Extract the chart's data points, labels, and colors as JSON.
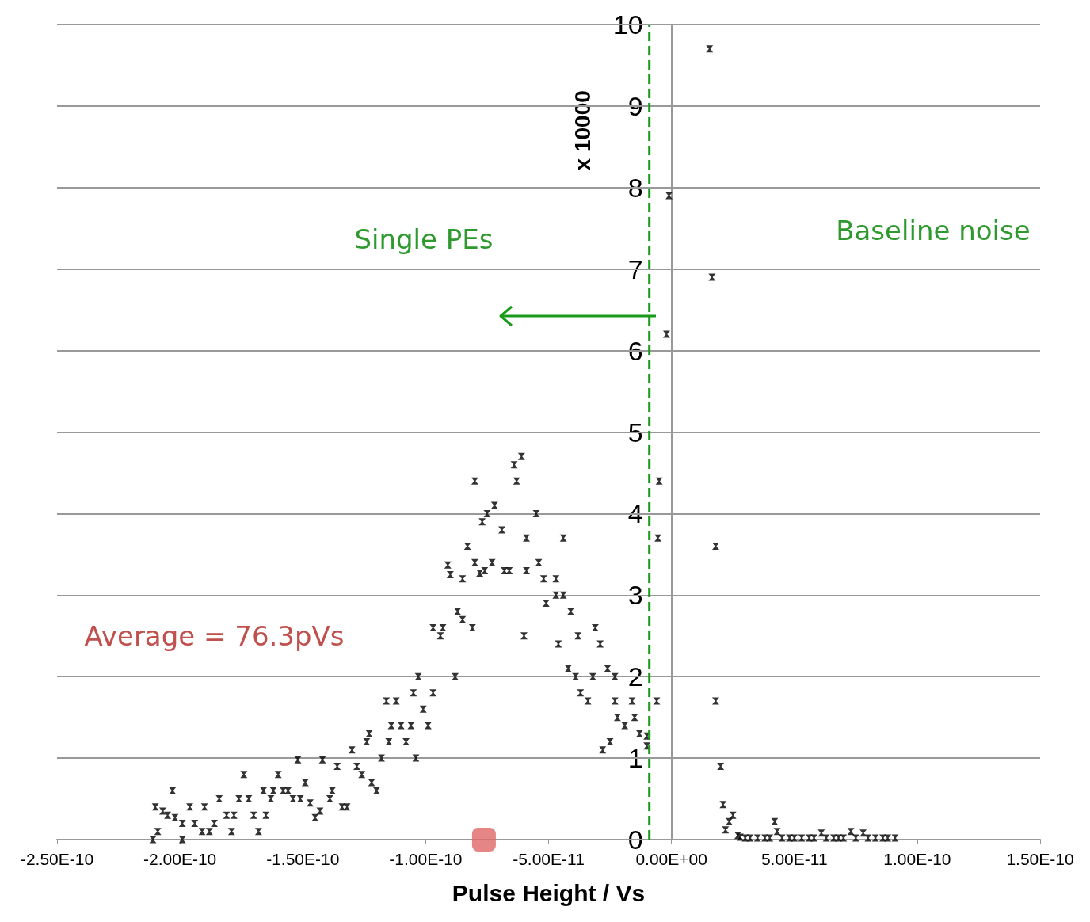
{
  "chart_data": {
    "type": "scatter",
    "xlabel": "Pulse Height / Vs",
    "ylabel": "x 10000",
    "xlim": [
      -2.5e-10,
      1.5e-10
    ],
    "xticks": [
      {
        "value": -2.5e-10,
        "label": "-2.50E-10"
      },
      {
        "value": -2e-10,
        "label": "-2.00E-10"
      },
      {
        "value": -1.5e-10,
        "label": "-1.50E-10"
      },
      {
        "value": -1e-10,
        "label": "-1.00E-10"
      },
      {
        "value": -5e-11,
        "label": "-5.00E-11"
      },
      {
        "value": 0,
        "label": "0.00E+00"
      },
      {
        "value": 5e-11,
        "label": "5.00E-11"
      },
      {
        "value": 1e-10,
        "label": "1.00E-10"
      },
      {
        "value": 1.5e-10,
        "label": "1.50E-10"
      }
    ],
    "ylim": [
      0,
      10
    ],
    "yticks": [
      0,
      1,
      2,
      3,
      4,
      5,
      6,
      7,
      8,
      9,
      10
    ],
    "grid": "y",
    "marker": "cross",
    "ref_lines": [
      {
        "axis": "x",
        "value": -9e-12,
        "color": "#1a9a1a",
        "line_style": "dashed"
      }
    ],
    "annotations": [
      "Single PEs",
      "Baseline noise",
      "Average = 76.3pVs"
    ],
    "series": [
      {
        "color": "#000000",
        "x": [
          -2.11e-10,
          -2.09e-10,
          -2.1e-10,
          -2.07e-10,
          -2.05e-10,
          -2.03e-10,
          -2.02e-10,
          -1.99e-10,
          -1.99e-10,
          -1.96e-10,
          -1.94e-10,
          -1.91e-10,
          -1.9e-10,
          -1.88e-10,
          -1.86e-10,
          -1.84e-10,
          -1.81e-10,
          -1.79e-10,
          -1.78e-10,
          -1.76e-10,
          -1.74e-10,
          -1.72e-10,
          -1.7e-10,
          -1.68e-10,
          -1.66e-10,
          -1.65e-10,
          -1.63e-10,
          -1.62e-10,
          -1.6e-10,
          -1.58e-10,
          -1.56e-10,
          -1.54e-10,
          -1.52e-10,
          -1.51e-10,
          -1.49e-10,
          -1.47e-10,
          -1.45e-10,
          -1.43e-10,
          -1.42e-10,
          -1.39e-10,
          -1.38e-10,
          -1.36e-10,
          -1.34e-10,
          -1.32e-10,
          -1.3e-10,
          -1.28e-10,
          -1.26e-10,
          -1.24e-10,
          -1.23e-10,
          -1.22e-10,
          -1.2e-10,
          -1.18e-10,
          -1.16e-10,
          -1.15e-10,
          -1.14e-10,
          -1.12e-10,
          -1.1e-10,
          -1.08e-10,
          -1.06e-10,
          -1.05e-10,
          -1.04e-10,
          -1.03e-10,
          -1.01e-10,
          -9.9e-11,
          -9.7e-11,
          -9.7e-11,
          -9.4e-11,
          -9.3e-11,
          -8.8e-11,
          -9e-11,
          -9.1e-11,
          -8.5e-11,
          -8.7e-11,
          -8.5e-11,
          -8.1e-11,
          -8.3e-11,
          -8e-11,
          -8e-11,
          -7.8e-11,
          -7.6e-11,
          -7.3e-11,
          -7.7e-11,
          -7.5e-11,
          -7.2e-11,
          -6.9e-11,
          -6.8e-11,
          -6.6e-11,
          -6.4e-11,
          -6.3e-11,
          -6.1e-11,
          -6e-11,
          -5.9e-11,
          -5.9e-11,
          -5.5e-11,
          -5.4e-11,
          -5.2e-11,
          -5.1e-11,
          -4.7e-11,
          -4.7e-11,
          -4.4e-11,
          -4.6e-11,
          -4.4e-11,
          -4.1e-11,
          -4.2e-11,
          -3.9e-11,
          -3.7e-11,
          -3.4e-11,
          -3.8e-11,
          -3.1e-11,
          -2.9e-11,
          -3.2e-11,
          -2.6e-11,
          -2.3e-11,
          -2.3e-11,
          -2.8e-11,
          -2.5e-11,
          -2.2e-11,
          -1.9e-11,
          -1.6e-11,
          -1.5e-11,
          -1.3e-11,
          -1e-11,
          -1e-11,
          -6e-12,
          -5.5e-12,
          -5e-12,
          -2e-12,
          -1e-12,
          1.55e-11,
          1.65e-11,
          1.8e-11,
          1.8e-11,
          2e-11,
          2.1e-11,
          2.2e-11,
          2.35e-11,
          2.5e-11,
          2.7e-11,
          2.8e-11,
          3e-11,
          3.2e-11,
          3.5e-11,
          3.8e-11,
          4e-11,
          4.2e-11,
          4.3e-11,
          4.5e-11,
          4.8e-11,
          5e-11,
          5.3e-11,
          5.6e-11,
          5.8e-11,
          6.1e-11,
          6.3e-11,
          6.6e-11,
          6.8e-11,
          7e-11,
          7.3e-11,
          7.5e-11,
          7.8e-11,
          8e-11,
          8.3e-11,
          8.6e-11,
          8.8e-11,
          9.1e-11
        ],
        "values": [
          0,
          0.1,
          0.4,
          0.35,
          0.3,
          0.6,
          0.27,
          0.2,
          0,
          0.4,
          0.2,
          0.1,
          0.4,
          0.1,
          0.2,
          0.5,
          0.3,
          0.1,
          0.3,
          0.5,
          0.8,
          0.5,
          0.3,
          0.1,
          0.6,
          0.3,
          0.5,
          0.6,
          0.8,
          0.6,
          0.6,
          0.5,
          0.98,
          0.5,
          0.7,
          0.45,
          0.27,
          0.35,
          0.98,
          0.5,
          0.6,
          0.9,
          0.4,
          0.4,
          1.1,
          0.9,
          0.8,
          1.2,
          1.3,
          0.7,
          0.6,
          1,
          1.7,
          1.2,
          1.4,
          1.7,
          1.4,
          1.2,
          1.4,
          1.8,
          1,
          2,
          1.6,
          1.4,
          1.8,
          2.6,
          2.5,
          2.6,
          2,
          3.25,
          3.37,
          3.2,
          2.8,
          2.7,
          2.6,
          3.6,
          3.4,
          4.4,
          3.27,
          3.3,
          3.4,
          3.9,
          4,
          4.1,
          3.8,
          3.3,
          3.3,
          4.6,
          4.4,
          4.7,
          2.5,
          3.7,
          3.3,
          4,
          3.4,
          3.2,
          2.9,
          3.2,
          3,
          3.7,
          2.4,
          3,
          2.8,
          2.1,
          2,
          1.8,
          1.7,
          2.5,
          2.6,
          2.4,
          2,
          2.1,
          2,
          1.7,
          1.1,
          1.2,
          1.5,
          1.4,
          1.7,
          1.5,
          1.3,
          1.15,
          1.27,
          1.7,
          3.7,
          4.4,
          6.2,
          7.9,
          9.7,
          6.9,
          3.6,
          1.7,
          0.9,
          0.43,
          0.12,
          0.22,
          0.3,
          0.05,
          0.03,
          0.02,
          0.02,
          0.02,
          0.02,
          0.02,
          0.22,
          0.1,
          0.02,
          0.02,
          0.02,
          0.02,
          0.02,
          0.02,
          0.08,
          0.02,
          0.02,
          0.02,
          0.02,
          0.1,
          0.02,
          0.08,
          0.02,
          0.02,
          0.02,
          0.02,
          0.02
        ]
      },
      {
        "color": "#e06666",
        "marker": "square",
        "x": [
          -7.63e-11
        ],
        "values": [
          0
        ]
      }
    ]
  }
}
